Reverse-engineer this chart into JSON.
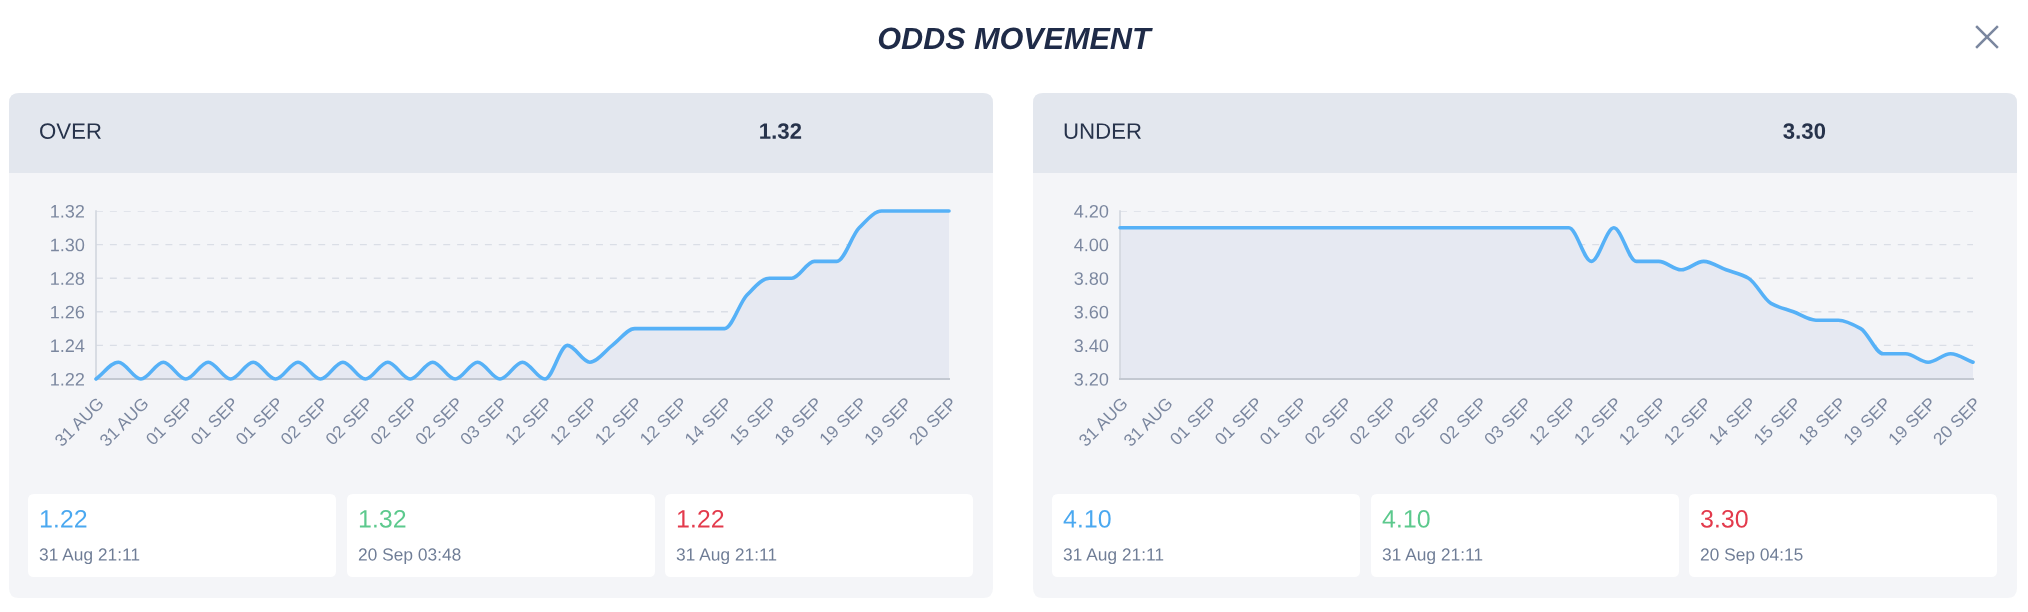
{
  "chart_data": [
    {
      "type": "other",
      "title": "ODDS MOVEMENT"
    },
    {
      "type": "area",
      "title": "OVER",
      "categories": [
        "31 AUG",
        null,
        "31 AUG",
        null,
        "01 SEP",
        null,
        "01 SEP",
        null,
        "01 SEP",
        null,
        "02 SEP",
        null,
        "02 SEP",
        null,
        "02 SEP",
        null,
        "02 SEP",
        null,
        "03 SEP",
        null,
        "12 SEP",
        null,
        "12 SEP",
        null,
        "12 SEP",
        null,
        "12 SEP",
        null,
        "14 SEP",
        null,
        "15 SEP",
        null,
        "18 SEP",
        null,
        "19 SEP",
        null,
        "19 SEP",
        null,
        "20 SEP"
      ],
      "series": [
        {
          "color": "#56b1f7",
          "values": [
            1.22,
            1.23,
            1.22,
            1.23,
            1.22,
            1.23,
            1.22,
            1.23,
            1.22,
            1.23,
            1.22,
            1.23,
            1.22,
            1.23,
            1.22,
            1.23,
            1.22,
            1.23,
            1.22,
            1.23,
            1.22,
            1.24,
            1.23,
            1.24,
            1.25,
            1.25,
            1.25,
            1.25,
            1.25,
            1.27,
            1.28,
            1.28,
            1.29,
            1.29,
            1.31,
            1.32,
            1.32,
            1.32,
            1.32
          ]
        }
      ],
      "ylim": [
        1.22,
        1.32
      ],
      "yticks": [
        {
          "value": 1.22,
          "label": "1.22"
        },
        {
          "value": 1.24,
          "label": "1.24"
        },
        {
          "value": 1.26,
          "label": "1.26"
        },
        {
          "value": 1.28,
          "label": "1.28"
        },
        {
          "value": 1.3,
          "label": "1.30"
        },
        {
          "value": 1.32,
          "label": "1.32"
        }
      ],
      "grid": "y",
      "marker": "none",
      "line_style": "solid",
      "annotations": [
        "1.32",
        "1.22",
        "31 Aug 21:11",
        "1.32",
        "20 Sep 03:48",
        "1.22",
        "31 Aug 21:11"
      ]
    },
    {
      "type": "area",
      "title": "UNDER",
      "categories": [
        "31 AUG",
        null,
        "31 AUG",
        null,
        "01 SEP",
        null,
        "01 SEP",
        null,
        "01 SEP",
        null,
        "02 SEP",
        null,
        "02 SEP",
        null,
        "02 SEP",
        null,
        "02 SEP",
        null,
        "03 SEP",
        null,
        "12 SEP",
        null,
        "12 SEP",
        null,
        "12 SEP",
        null,
        "12 SEP",
        null,
        "14 SEP",
        null,
        "15 SEP",
        null,
        "18 SEP",
        null,
        "19 SEP",
        null,
        "19 SEP",
        null,
        "20 SEP"
      ],
      "series": [
        {
          "color": "#56b1f7",
          "values": [
            4.1,
            4.1,
            4.1,
            4.1,
            4.1,
            4.1,
            4.1,
            4.1,
            4.1,
            4.1,
            4.1,
            4.1,
            4.1,
            4.1,
            4.1,
            4.1,
            4.1,
            4.1,
            4.1,
            4.1,
            4.1,
            3.9,
            4.1,
            3.9,
            3.9,
            3.85,
            3.9,
            3.85,
            3.8,
            3.65,
            3.6,
            3.55,
            3.55,
            3.5,
            3.35,
            3.35,
            3.3,
            3.35,
            3.3
          ]
        }
      ],
      "ylim": [
        3.2,
        4.2
      ],
      "yticks": [
        {
          "value": 3.2,
          "label": "3.20"
        },
        {
          "value": 3.4,
          "label": "3.40"
        },
        {
          "value": 3.6,
          "label": "3.60"
        },
        {
          "value": 3.8,
          "label": "3.80"
        },
        {
          "value": 4.0,
          "label": "4.00"
        },
        {
          "value": 4.2,
          "label": "4.20"
        }
      ],
      "grid": "y",
      "marker": "none",
      "line_style": "solid",
      "annotations": [
        "3.30",
        "4.10",
        "31 Aug 21:11",
        "4.10",
        "31 Aug 21:11",
        "3.30",
        "20 Sep 04:15"
      ]
    }
  ]
}
